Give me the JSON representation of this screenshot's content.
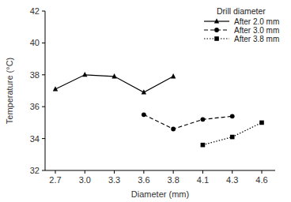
{
  "chart_data": {
    "type": "line",
    "x_label": "Diameter (mm)",
    "y_label": "Temperature (°C)",
    "legend_title": "Drill diameter",
    "categories": [
      "2.7",
      "3.0",
      "3.3",
      "3.6",
      "3.8",
      "4.1",
      "4.3",
      "4.6"
    ],
    "series": [
      {
        "name": "After 2.0 mm",
        "color": "#000000",
        "marker": "triangle",
        "line_style": "solid",
        "values": [
          37.1,
          38.0,
          37.9,
          36.9,
          37.9,
          null,
          null,
          null
        ]
      },
      {
        "name": "After 3.0 mm",
        "color": "#000000",
        "marker": "circle",
        "line_style": "dashed",
        "values": [
          null,
          null,
          null,
          35.5,
          34.6,
          35.2,
          35.4,
          null
        ]
      },
      {
        "name": "After 3.8 mm",
        "color": "#000000",
        "marker": "square",
        "line_style": "dotted",
        "values": [
          null,
          null,
          null,
          null,
          null,
          33.6,
          34.1,
          35.0
        ]
      }
    ],
    "ylim": [
      32,
      42
    ],
    "yticks": [
      32,
      34,
      36,
      38,
      40,
      42
    ],
    "legend": "top-right",
    "grid": false
  }
}
